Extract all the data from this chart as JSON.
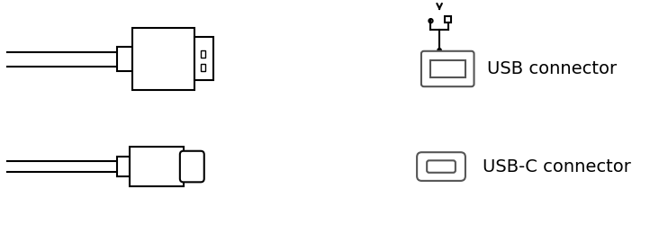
{
  "fig_width": 7.32,
  "fig_height": 2.5,
  "dpi": 100,
  "bg_color": "#ffffff",
  "line_color": "#000000",
  "gray_color": "#aaaaaa",
  "usb_label": "USB connector",
  "usbc_label": "USB-C connector",
  "label_fontsize": 14
}
